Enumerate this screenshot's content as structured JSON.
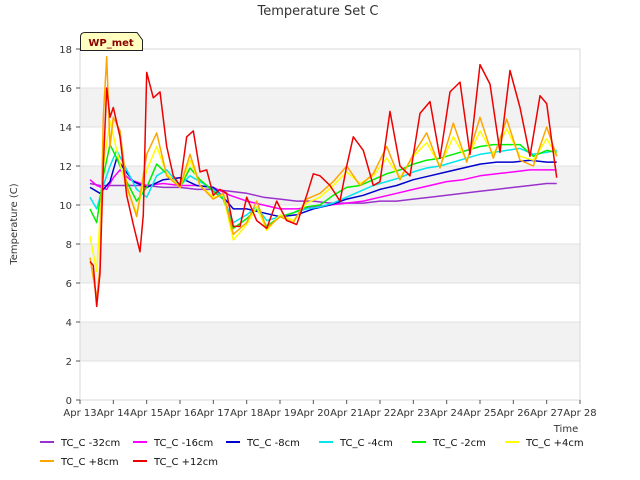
{
  "chart_data": {
    "type": "line",
    "title": "Temperature Set C",
    "ylabel": "Temperature (C)",
    "xlabel": "Time",
    "annotation": "WP_met",
    "xlim": [
      13,
      28
    ],
    "ylim": [
      0,
      18
    ],
    "xticks": [
      13,
      14,
      15,
      16,
      17,
      18,
      19,
      20,
      21,
      22,
      23,
      24,
      25,
      26,
      27,
      28
    ],
    "xtick_labels": [
      "Apr 13",
      "Apr 14",
      "Apr 15",
      "Apr 16",
      "Apr 17",
      "Apr 18",
      "Apr 19",
      "Apr 20",
      "Apr 21",
      "Apr 22",
      "Apr 23",
      "Apr 24",
      "Apr 25",
      "Apr 26",
      "Apr 27",
      "Apr 28"
    ],
    "yticks": [
      0,
      2,
      4,
      6,
      8,
      10,
      12,
      14,
      16,
      18
    ],
    "ytick_labels": [
      "0",
      "2",
      "4",
      "6",
      "8",
      "10",
      "12",
      "14",
      "16",
      "18"
    ],
    "grid": "horizontal bands",
    "legend_position": "bottom",
    "series": [
      {
        "name": "TC_C -32cm",
        "color": "#9932cc",
        "x": [
          13.3,
          13.6,
          14.0,
          14.5,
          15.0,
          15.5,
          16.0,
          16.5,
          17.0,
          17.5,
          18.0,
          18.5,
          19.0,
          19.5,
          20.0,
          20.5,
          21.0,
          21.5,
          22.0,
          22.5,
          23.0,
          23.5,
          24.0,
          24.5,
          25.0,
          25.5,
          26.0,
          26.5,
          27.0,
          27.3
        ],
        "y": [
          11.1,
          11.0,
          11.0,
          11.0,
          11.0,
          10.9,
          10.9,
          10.8,
          10.8,
          10.7,
          10.6,
          10.4,
          10.3,
          10.2,
          10.2,
          10.1,
          10.1,
          10.1,
          10.2,
          10.2,
          10.3,
          10.4,
          10.5,
          10.6,
          10.7,
          10.8,
          10.9,
          11.0,
          11.1,
          11.1
        ]
      },
      {
        "name": "TC_C -16cm",
        "color": "#ff00ff",
        "x": [
          13.3,
          13.5,
          13.8,
          14.0,
          14.2,
          14.5,
          15.0,
          15.5,
          16.0,
          16.5,
          17.0,
          17.5,
          18.0,
          18.5,
          19.0,
          19.5,
          20.0,
          20.5,
          21.0,
          21.5,
          22.0,
          22.5,
          23.0,
          23.5,
          24.0,
          24.5,
          25.0,
          25.5,
          26.0,
          26.5,
          27.0,
          27.3
        ],
        "y": [
          11.3,
          11.0,
          10.8,
          11.4,
          11.8,
          11.3,
          11.0,
          11.1,
          11.0,
          11.0,
          10.9,
          10.5,
          10.2,
          10.0,
          9.8,
          9.8,
          9.9,
          10.0,
          10.1,
          10.2,
          10.4,
          10.6,
          10.8,
          11.0,
          11.2,
          11.3,
          11.5,
          11.6,
          11.7,
          11.8,
          11.8,
          11.8
        ]
      },
      {
        "name": "TC_C -8cm",
        "color": "#0000cd",
        "x": [
          13.3,
          13.6,
          13.9,
          14.1,
          14.3,
          14.6,
          15.0,
          15.5,
          16.0,
          16.5,
          17.0,
          17.3,
          17.6,
          18.0,
          18.5,
          19.0,
          19.5,
          20.0,
          20.5,
          21.0,
          21.5,
          22.0,
          22.5,
          23.0,
          23.5,
          24.0,
          24.5,
          25.0,
          25.5,
          26.0,
          26.5,
          27.0,
          27.3
        ],
        "y": [
          10.9,
          10.6,
          11.2,
          12.4,
          11.9,
          11.2,
          10.9,
          11.3,
          11.4,
          11.0,
          10.9,
          10.4,
          9.8,
          9.8,
          9.6,
          9.4,
          9.5,
          9.8,
          10.0,
          10.3,
          10.5,
          10.8,
          11.0,
          11.3,
          11.5,
          11.7,
          11.9,
          12.1,
          12.2,
          12.2,
          12.3,
          12.2,
          12.2
        ]
      },
      {
        "name": "TC_C -4cm",
        "color": "#00e5ee",
        "x": [
          13.3,
          13.5,
          13.7,
          13.9,
          14.1,
          14.4,
          14.7,
          15.0,
          15.3,
          15.6,
          16.0,
          16.3,
          16.6,
          17.0,
          17.3,
          17.6,
          18.0,
          18.3,
          18.6,
          19.0,
          19.4,
          19.8,
          20.2,
          20.6,
          21.0,
          21.4,
          21.8,
          22.2,
          22.6,
          23.0,
          23.4,
          23.8,
          24.2,
          24.6,
          25.0,
          25.4,
          25.8,
          26.2,
          26.6,
          27.0,
          27.3
        ],
        "y": [
          10.4,
          9.8,
          11.0,
          12.0,
          12.8,
          11.8,
          10.8,
          10.4,
          11.5,
          11.8,
          11.0,
          11.5,
          11.2,
          10.8,
          10.4,
          9.1,
          9.5,
          9.9,
          9.2,
          9.4,
          9.6,
          9.8,
          9.9,
          10.1,
          10.4,
          10.7,
          11.0,
          11.2,
          11.4,
          11.7,
          11.9,
          12.0,
          12.2,
          12.4,
          12.6,
          12.7,
          12.8,
          12.9,
          12.6,
          12.7,
          12.8
        ]
      },
      {
        "name": "TC_C -2cm",
        "color": "#00ee00",
        "x": [
          13.3,
          13.5,
          13.7,
          13.9,
          14.1,
          14.4,
          14.7,
          15.0,
          15.3,
          15.6,
          16.0,
          16.3,
          16.6,
          17.0,
          17.3,
          17.6,
          18.0,
          18.3,
          18.6,
          19.0,
          19.4,
          19.8,
          20.2,
          20.6,
          21.0,
          21.4,
          21.8,
          22.2,
          22.6,
          23.0,
          23.4,
          23.8,
          24.2,
          24.6,
          25.0,
          25.4,
          25.8,
          26.2,
          26.6,
          27.0,
          27.3
        ],
        "y": [
          9.8,
          9.1,
          11.5,
          13.1,
          12.4,
          11.2,
          10.2,
          10.9,
          12.1,
          11.6,
          10.9,
          11.9,
          11.3,
          10.7,
          10.3,
          8.8,
          9.3,
          9.8,
          8.9,
          9.4,
          9.6,
          9.9,
          10.0,
          10.5,
          10.9,
          11.0,
          11.3,
          11.6,
          11.8,
          12.1,
          12.3,
          12.4,
          12.6,
          12.8,
          13.0,
          13.1,
          13.1,
          13.1,
          12.5,
          12.8,
          12.7
        ]
      },
      {
        "name": "TC_C +4cm",
        "color": "#ffff00",
        "x": [
          13.3,
          13.5,
          13.7,
          13.9,
          14.1,
          14.4,
          14.7,
          15.0,
          15.3,
          15.6,
          16.0,
          16.3,
          16.6,
          17.0,
          17.3,
          17.6,
          18.0,
          18.3,
          18.6,
          19.0,
          19.4,
          19.8,
          20.2,
          20.6,
          21.0,
          21.4,
          21.8,
          22.2,
          22.6,
          23.0,
          23.4,
          23.8,
          24.2,
          24.6,
          25.0,
          25.4,
          25.8,
          26.2,
          26.6,
          27.0,
          27.3
        ],
        "y": [
          8.4,
          6.6,
          12.0,
          14.3,
          12.8,
          10.8,
          9.6,
          11.8,
          13.0,
          11.6,
          10.9,
          12.3,
          11.0,
          10.4,
          10.5,
          8.2,
          9.0,
          9.9,
          8.7,
          9.5,
          9.2,
          10.1,
          10.4,
          11.0,
          11.7,
          11.1,
          11.5,
          12.4,
          11.4,
          12.5,
          13.2,
          12.0,
          13.5,
          12.3,
          13.8,
          12.6,
          13.9,
          12.5,
          12.3,
          13.4,
          12.5
        ]
      },
      {
        "name": "TC_C +8cm",
        "color": "#ffa500",
        "x": [
          13.3,
          13.5,
          13.6,
          13.7,
          13.8,
          13.9,
          14.0,
          14.2,
          14.4,
          14.7,
          15.0,
          15.3,
          15.6,
          16.0,
          16.3,
          16.6,
          17.0,
          17.3,
          17.6,
          18.0,
          18.3,
          18.6,
          19.0,
          19.4,
          19.8,
          20.2,
          20.6,
          21.0,
          21.4,
          21.8,
          22.2,
          22.6,
          23.0,
          23.4,
          23.8,
          24.2,
          24.6,
          25.0,
          25.4,
          25.8,
          26.2,
          26.6,
          27.0,
          27.3
        ],
        "y": [
          7.3,
          5.2,
          6.8,
          14.5,
          17.6,
          13.0,
          14.5,
          13.8,
          11.0,
          9.4,
          12.6,
          13.7,
          11.5,
          10.9,
          12.6,
          11.0,
          10.3,
          10.6,
          8.5,
          9.1,
          10.2,
          8.8,
          9.4,
          9.1,
          10.3,
          10.6,
          11.2,
          12.0,
          11.0,
          11.6,
          13.0,
          11.3,
          12.6,
          13.7,
          11.9,
          14.2,
          12.2,
          14.5,
          12.4,
          14.4,
          12.3,
          12.0,
          14.0,
          12.5
        ]
      },
      {
        "name": "TC_C +12cm",
        "color": "#ee0000",
        "x": [
          13.3,
          13.4,
          13.5,
          13.6,
          13.7,
          13.8,
          13.9,
          14.0,
          14.2,
          14.4,
          14.6,
          14.8,
          14.9,
          15.0,
          15.2,
          15.4,
          15.6,
          15.8,
          16.0,
          16.2,
          16.4,
          16.6,
          16.8,
          17.0,
          17.2,
          17.4,
          17.6,
          17.8,
          18.0,
          18.3,
          18.6,
          18.9,
          19.2,
          19.5,
          19.8,
          20.0,
          20.2,
          20.5,
          20.8,
          21.0,
          21.2,
          21.5,
          21.8,
          22.0,
          22.3,
          22.6,
          22.9,
          23.2,
          23.5,
          23.8,
          24.1,
          24.4,
          24.7,
          25.0,
          25.3,
          25.6,
          25.9,
          26.2,
          26.5,
          26.8,
          27.0,
          27.3
        ],
        "y": [
          7.1,
          6.9,
          4.8,
          6.5,
          12.0,
          16.0,
          14.5,
          15.0,
          13.5,
          10.5,
          9.0,
          7.6,
          9.5,
          16.8,
          15.5,
          15.8,
          13.0,
          11.5,
          11.0,
          13.5,
          13.8,
          11.7,
          11.8,
          10.5,
          10.8,
          10.6,
          8.9,
          8.9,
          10.4,
          9.2,
          8.8,
          10.2,
          9.2,
          9.0,
          10.5,
          11.6,
          11.5,
          11.0,
          10.2,
          12.0,
          13.5,
          12.8,
          11.0,
          11.2,
          14.8,
          12.0,
          11.5,
          14.7,
          15.3,
          12.4,
          15.8,
          16.3,
          12.6,
          17.2,
          16.2,
          12.7,
          16.9,
          15.0,
          12.5,
          15.6,
          15.2,
          11.4
        ]
      }
    ]
  }
}
